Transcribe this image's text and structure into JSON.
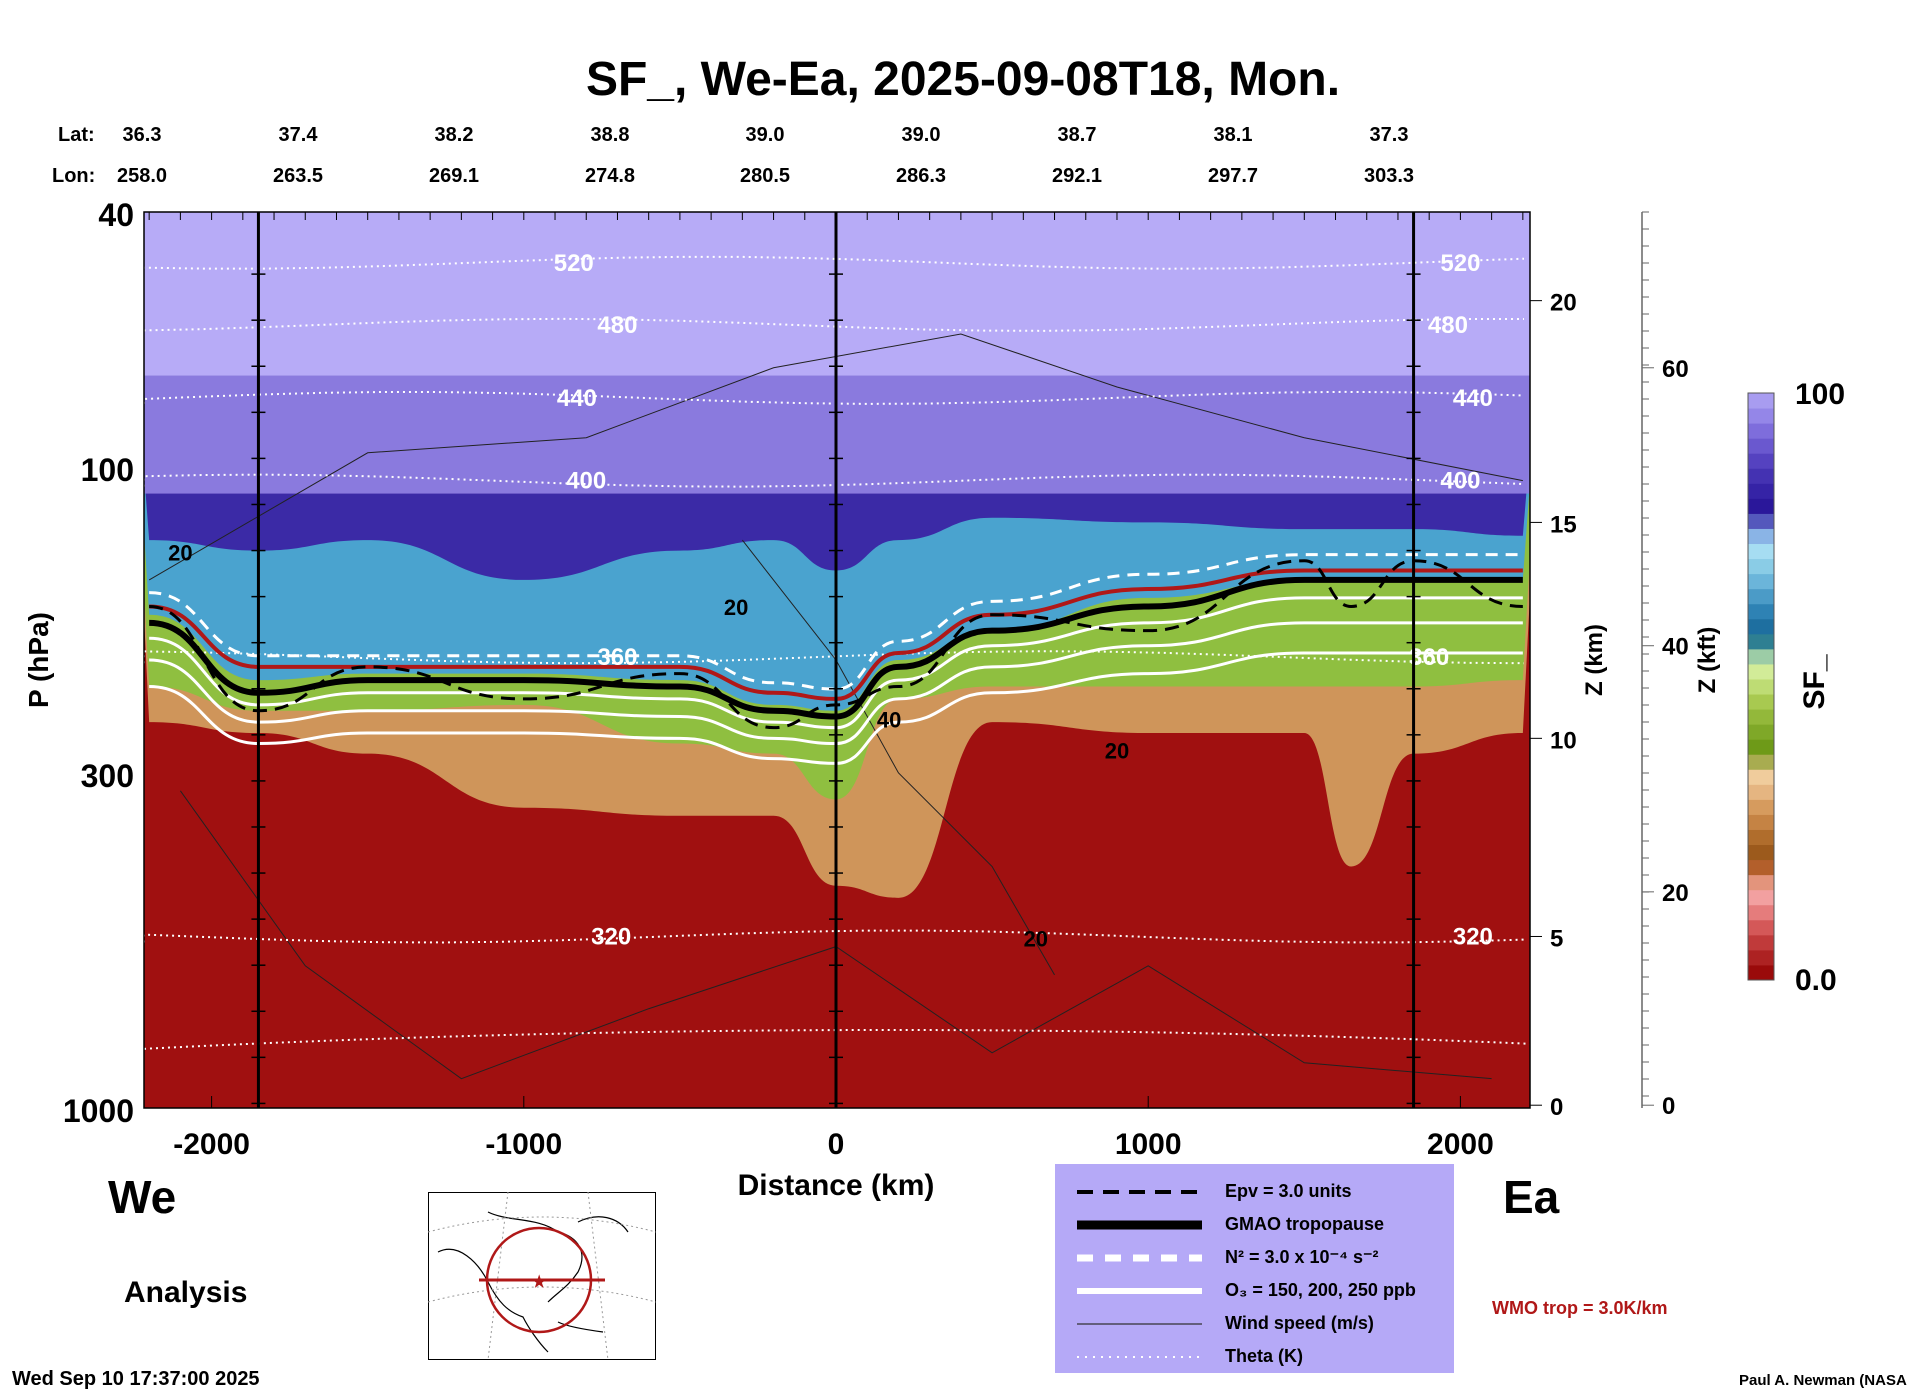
{
  "chart_data": {
    "type": "heatmap",
    "title": "SF_, We-Ea, 2025-09-08T18, Mon.",
    "xlabel": "Distance (km)",
    "ylabel": "P (hPa)",
    "y2label": "Z (km)",
    "y3label": "Z (kft)",
    "xlim": [
      -2220,
      2220
    ],
    "ylim": [
      1000,
      40
    ],
    "x_ticks": [
      -2000,
      -1000,
      0,
      1000,
      2000
    ],
    "x_tick_labels": [
      "-2000",
      "-1000",
      "0",
      "1000",
      "2000"
    ],
    "p_ticks": [
      40,
      100,
      300,
      1000
    ],
    "p_tick_labels": [
      "40",
      "100",
      "300",
      "1000"
    ],
    "zkm_ticks": [
      {
        "label": "20",
        "p": 55
      },
      {
        "label": "15",
        "p": 122
      },
      {
        "label": "10",
        "p": 265
      },
      {
        "label": "5",
        "p": 540
      },
      {
        "label": "0",
        "p": 990
      }
    ],
    "zkft_ticks": [
      {
        "label": "60",
        "p": 70
      },
      {
        "label": "40",
        "p": 190
      },
      {
        "label": "20",
        "p": 460
      },
      {
        "label": "0",
        "p": 990
      }
    ],
    "lat_label": "Lat:",
    "lon_label": "Lon:",
    "lat": [
      "36.3",
      "37.4",
      "38.2",
      "38.8",
      "39.0",
      "39.0",
      "38.7",
      "38.1",
      "37.3"
    ],
    "lon": [
      "258.0",
      "263.5",
      "269.1",
      "274.8",
      "280.5",
      "286.3",
      "292.1",
      "297.7",
      "303.3"
    ],
    "lat_lon_distance": [
      -2220,
      -1720,
      -1220,
      -720,
      -220,
      280,
      780,
      1280,
      1780
    ],
    "vertical_markers_km": [
      -1850,
      0,
      1850
    ],
    "profile_x": [
      -2200,
      -1850,
      -1500,
      -1000,
      -500,
      -200,
      0,
      200,
      500,
      1000,
      1500,
      1650,
      1850,
      2200
    ],
    "layers": [
      {
        "name": "sf-high-blue",
        "color": "#3b2aa6",
        "p": [
          130,
          135,
          130,
          150,
          135,
          130,
          145,
          130,
          120,
          122,
          125,
          125,
          125,
          128
        ]
      },
      {
        "name": "sf-teal",
        "color": "#4aa3cf",
        "p": [
          170,
          215,
          210,
          210,
          215,
          235,
          240,
          200,
          180,
          160,
          150,
          150,
          150,
          150
        ]
      },
      {
        "name": "sf-green",
        "color": "#8fbf40",
        "p": [
          220,
          240,
          240,
          235,
          270,
          280,
          330,
          230,
          220,
          220,
          220,
          220,
          220,
          215
        ]
      },
      {
        "name": "sf-tan",
        "color": "#cf955a",
        "p": [
          250,
          260,
          280,
          340,
          350,
          350,
          450,
          470,
          250,
          260,
          260,
          420,
          280,
          260
        ]
      }
    ],
    "upper_bands": [
      {
        "name": "sf-pale-lavender",
        "color": "#b7abf7",
        "p_top": 40,
        "p_bottom": 72
      },
      {
        "name": "sf-medium-purple",
        "color": "#8e7ee0",
        "p_top": 72,
        "p_bottom": 110
      }
    ],
    "base_color": "#a01010",
    "gmao_tropopause_p": [
      175,
      225,
      215,
      215,
      220,
      240,
      245,
      205,
      180,
      165,
      150,
      150,
      150,
      150
    ],
    "wmo_tropopause_p": [
      165,
      205,
      205,
      205,
      205,
      225,
      230,
      195,
      170,
      155,
      145,
      145,
      145,
      145
    ],
    "theta_lines": [
      {
        "value": "520",
        "p": 48,
        "label_x": -840,
        "label_x2": 2000
      },
      {
        "value": "480",
        "p": 60,
        "label_x": -700,
        "label_x2": 1960
      },
      {
        "value": "440",
        "p": 78,
        "label_x": -830,
        "label_x2": 2040
      },
      {
        "value": "400",
        "p": 105,
        "label_x": -800,
        "label_x2": 2000
      },
      {
        "value": "360",
        "p": 198,
        "label_x": -700,
        "label_x2": 1900
      },
      {
        "value": "320",
        "p": 540,
        "label_x": -720,
        "label_x2": 2040
      }
    ],
    "theta_lower_p": 780,
    "wind_labels": [
      {
        "value": "20",
        "x": -2100,
        "p": 140
      },
      {
        "value": "20",
        "x": -320,
        "p": 170
      },
      {
        "value": "40",
        "x": 170,
        "p": 255
      },
      {
        "value": "20",
        "x": 900,
        "p": 285
      },
      {
        "value": "20",
        "x": 640,
        "p": 560
      }
    ],
    "colorbar": {
      "label": "SF_",
      "min_label": "0.0",
      "max_label": "100",
      "colors": [
        "#9a0a0a",
        "#ad2222",
        "#c03a3a",
        "#d45858",
        "#e57c7c",
        "#f2a0a0",
        "#e3947c",
        "#b35f2b",
        "#9c5a1c",
        "#b06d2c",
        "#c58344",
        "#d69b5e",
        "#e5b581",
        "#f0cc9c",
        "#a8ac50",
        "#6e9a18",
        "#7fa828",
        "#93b83a",
        "#a8c950",
        "#bedc74",
        "#d2ec98",
        "#9ccca6",
        "#2e7f92",
        "#1e6fa0",
        "#2e82b4",
        "#4b9bc7",
        "#6bb5da",
        "#8acce6",
        "#a6ddf2",
        "#8ab4e6",
        "#5458bc",
        "#2a179a",
        "#3523a6",
        "#4432b2",
        "#5542c0",
        "#6a58cf",
        "#7e6ddc",
        "#9486e8",
        "#a89cf0"
      ]
    },
    "legend": [
      {
        "style": "black-dashed",
        "text": "Epv = 3.0 units"
      },
      {
        "style": "black-thick",
        "text": "GMAO tropopause"
      },
      {
        "style": "white-dashed",
        "text": "N² = 3.0 x 10⁻⁴ s⁻²"
      },
      {
        "style": "white-thick",
        "text": "O₃ = 150, 200, 250 ppb"
      },
      {
        "style": "thin-line",
        "text": "Wind speed (m/s)"
      },
      {
        "style": "dotted",
        "text": "Theta (K)"
      }
    ]
  },
  "labels": {
    "west": "We",
    "east": "Ea",
    "analysis": "Analysis",
    "wmo_trop": "WMO trop = 3.0K/km",
    "timestamp": "Wed Sep 10 17:37:00 2025",
    "credit": "Paul A. Newman (NASA"
  },
  "colors": {
    "wmo": "#b01818",
    "legend_bg": "#b5a9f7"
  }
}
